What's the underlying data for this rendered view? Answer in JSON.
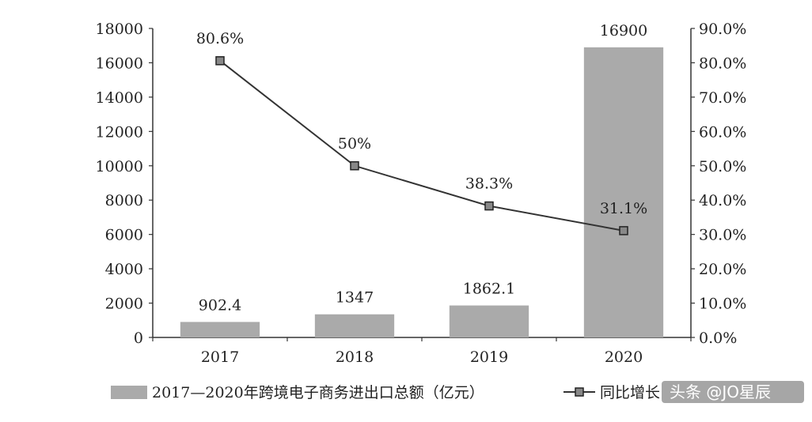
{
  "chart_data": {
    "type": "bar+line",
    "categories": [
      "2017",
      "2018",
      "2019",
      "2020"
    ],
    "series": [
      {
        "name": "2017—2020年跨境电子商务进出口总额（亿元）",
        "type": "bar",
        "axis": "left",
        "values": [
          902.4,
          1347,
          1862.1,
          16900
        ],
        "labels": [
          "902.4",
          "1347",
          "1862.1",
          "16900"
        ],
        "color": "#aaaaaa"
      },
      {
        "name": "同比增长",
        "type": "line",
        "axis": "right",
        "values": [
          80.6,
          50,
          38.3,
          31.1
        ],
        "labels": [
          "80.6%",
          "50%",
          "38.3%",
          "31.1%"
        ],
        "color": "#333333",
        "marker": "square"
      }
    ],
    "y_left": {
      "ylim": [
        0,
        18000
      ],
      "ticks": [
        "0",
        "2000",
        "4000",
        "6000",
        "8000",
        "10000",
        "12000",
        "14000",
        "16000",
        "18000"
      ]
    },
    "y_right": {
      "ylim": [
        0,
        90
      ],
      "ticks": [
        "0.0%",
        "10.0%",
        "20.0%",
        "30.0%",
        "40.0%",
        "50.0%",
        "60.0%",
        "70.0%",
        "80.0%",
        "90.0%"
      ]
    },
    "grid": false,
    "legend_position": "bottom"
  },
  "watermark": {
    "text": "头条 @JO星辰"
  }
}
